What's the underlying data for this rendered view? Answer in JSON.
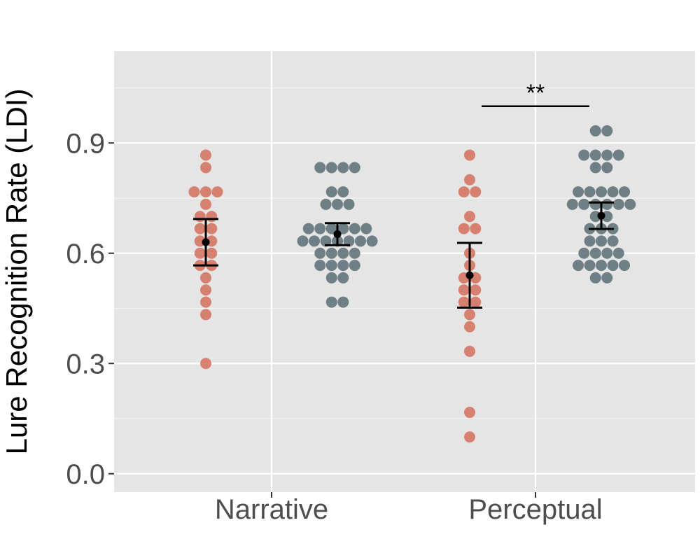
{
  "chart_data": {
    "type": "scatter",
    "ylabel": "Lure Recognition Rate (LDI)",
    "xlabel": "",
    "categories": [
      "Narrative",
      "Perceptual"
    ],
    "yticks": [
      0.0,
      0.3,
      0.6,
      0.9
    ],
    "ytick_labels": [
      "0.0",
      "0.3",
      "0.6",
      "0.9"
    ],
    "ylim": [
      -0.05,
      1.15
    ],
    "grid": true,
    "legend": "none",
    "panel_background": "#e5e5e5",
    "series": [
      {
        "color": "#d4735e",
        "groups": [
          {
            "category": "Narrative",
            "values": [
              0.867,
              0.833,
              0.767,
              0.767,
              0.767,
              0.733,
              0.7,
              0.7,
              0.667,
              0.667,
              0.633,
              0.633,
              0.6,
              0.6,
              0.567,
              0.567,
              0.533,
              0.5,
              0.467,
              0.433,
              0.3
            ],
            "mean": 0.63,
            "error_low": 0.567,
            "error_high": 0.693
          },
          {
            "category": "Perceptual",
            "values": [
              0.867,
              0.8,
              0.767,
              0.767,
              0.7,
              0.667,
              0.667,
              0.6,
              0.567,
              0.533,
              0.533,
              0.5,
              0.5,
              0.467,
              0.467,
              0.433,
              0.4,
              0.333,
              0.167,
              0.1
            ],
            "mean": 0.54,
            "error_low": 0.452,
            "error_high": 0.628
          }
        ]
      },
      {
        "color": "#5d7278",
        "groups": [
          {
            "category": "Narrative",
            "values": [
              0.833,
              0.833,
              0.833,
              0.833,
              0.767,
              0.767,
              0.733,
              0.733,
              0.733,
              0.667,
              0.667,
              0.667,
              0.667,
              0.667,
              0.667,
              0.633,
              0.633,
              0.633,
              0.633,
              0.633,
              0.633,
              0.633,
              0.6,
              0.6,
              0.6,
              0.6,
              0.567,
              0.567,
              0.567,
              0.567,
              0.533,
              0.533,
              0.467,
              0.467
            ],
            "mean": 0.652,
            "error_low": 0.622,
            "error_high": 0.682
          },
          {
            "category": "Perceptual",
            "values": [
              0.933,
              0.933,
              0.867,
              0.867,
              0.867,
              0.867,
              0.833,
              0.833,
              0.767,
              0.767,
              0.767,
              0.767,
              0.767,
              0.733,
              0.733,
              0.733,
              0.733,
              0.733,
              0.733,
              0.7,
              0.7,
              0.667,
              0.667,
              0.667,
              0.633,
              0.633,
              0.633,
              0.6,
              0.6,
              0.6,
              0.6,
              0.567,
              0.567,
              0.567,
              0.567,
              0.567,
              0.533,
              0.533
            ],
            "mean": 0.702,
            "error_low": 0.666,
            "error_high": 0.738
          }
        ]
      }
    ],
    "annotations": [
      {
        "text": "**",
        "category": "Perceptual",
        "y": 1.0
      }
    ]
  }
}
